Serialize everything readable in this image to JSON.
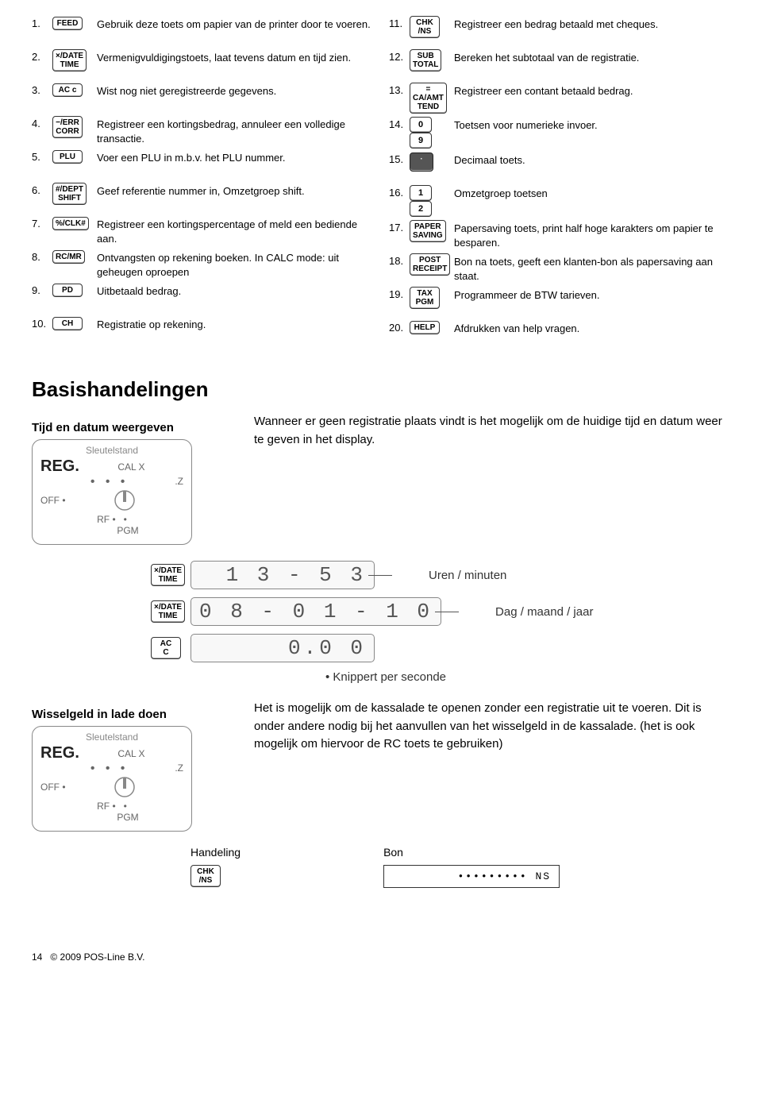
{
  "keys_left": [
    {
      "n": "1.",
      "cap": "FEED",
      "desc": "Gebruik deze toets om papier van de printer door te voeren."
    },
    {
      "n": "2.",
      "cap": "×/DATE TIME",
      "desc": "Vermenigvuldigingstoets, laat tevens datum en tijd zien."
    },
    {
      "n": "3.",
      "cap": "AC c",
      "desc": "Wist nog niet geregistreerde gegevens."
    },
    {
      "n": "4.",
      "cap": "−/ERR CORR",
      "desc": "Registreer een kortingsbedrag, annuleer een volledige transactie."
    },
    {
      "n": "5.",
      "cap": "PLU",
      "desc": "Voer een PLU in m.b.v. het PLU nummer."
    },
    {
      "n": "6.",
      "cap": "#/DEPT SHIFT",
      "desc": "Geef referentie nummer in, Omzetgroep shift."
    },
    {
      "n": "7.",
      "cap": "%/CLK#",
      "desc": "Registreer een kortingspercentage of meld een bediende aan."
    },
    {
      "n": "8.",
      "cap": "RC/MR",
      "desc": "Ontvangsten op rekening boeken. In CALC mode: uit geheugen oproepen"
    },
    {
      "n": "9.",
      "cap": "PD",
      "desc": "Uitbetaald bedrag."
    },
    {
      "n": "10.",
      "cap": "CH",
      "desc": "Registratie op rekening."
    }
  ],
  "keys_right": [
    {
      "n": "11.",
      "cap": "CHK /NS",
      "desc": "Registreer een bedrag betaald met cheques."
    },
    {
      "n": "12.",
      "cap": "SUB TOTAL",
      "desc": "Bereken het subtotaal van de registratie."
    },
    {
      "n": "13.",
      "cap": "= CA/AMT TEND",
      "desc": "Registreer een contant betaald bedrag."
    },
    {
      "n": "14.",
      "cap": "0 9",
      "double": true,
      "desc": "Toetsen voor numerieke invoer."
    },
    {
      "n": "15.",
      "cap": "·",
      "dot": true,
      "desc": "Decimaal toets."
    },
    {
      "n": "16.",
      "cap": "1 2",
      "double": true,
      "desc": "Omzetgroep toetsen"
    },
    {
      "n": "17.",
      "cap": "PAPER SAVING",
      "desc": "Papersaving toets, print half hoge karakters om papier te besparen."
    },
    {
      "n": "18.",
      "cap": "POST RECEIPT",
      "desc": "Bon na toets, geeft een klanten-bon als papersaving aan staat."
    },
    {
      "n": "19.",
      "cap": "TAX PGM",
      "desc": "Programmeer de BTW tarieven."
    },
    {
      "n": "20.",
      "cap": "HELP",
      "desc": "Afdrukken van help vragen."
    }
  ],
  "h1": "Basishandelingen",
  "sec1": {
    "title": "Tijd en datum weergeven",
    "text": "Wanneer er geen registratie plaats vindt is het mogelijk om de huidige tijd en datum weer te geven in het display."
  },
  "keyswitch": {
    "title": "Sleutelstand",
    "reg": "REG.",
    "calx": "CAL X",
    "z": "Z",
    "off": "OFF",
    "rf": "RF",
    "pgm": "PGM"
  },
  "displays": [
    {
      "prefix": "×/DATE TIME",
      "value": "1 3 - 5 3",
      "label": "Uren / minuten"
    },
    {
      "prefix": "×/DATE TIME",
      "value": "0 8 - 0 1 - 1 0",
      "label": "Dag / maand / jaar"
    },
    {
      "prefix": "AC C",
      "value": "0.0 0",
      "label": ""
    }
  ],
  "blink": "• Knippert per seconde",
  "sec2": {
    "title": "Wisselgeld in lade doen",
    "text": "Het is mogelijk om de kassalade te openen zonder een registratie uit te voeren. Dit is onder andere nodig bij het aanvullen van het wisselgeld in de kassalade. (het is ook mogelijk om hiervoor de RC toets te gebruiken)"
  },
  "action": {
    "head1": "Handeling",
    "key": "CHK /NS",
    "head2": "Bon",
    "receipt": "•••••••••   NS"
  },
  "footer": {
    "page": "14",
    "copy": "© 2009 POS-Line B.V."
  }
}
